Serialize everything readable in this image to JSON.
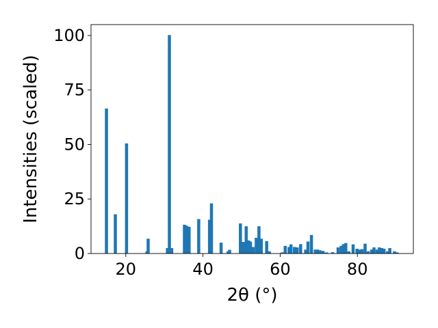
{
  "chart_data": {
    "type": "bar",
    "xlabel": "2θ (°)",
    "ylabel": "Intensities (scaled)",
    "xlim": [
      11,
      94.5
    ],
    "ylim": [
      0,
      105
    ],
    "x_ticks": [
      20,
      40,
      60,
      80
    ],
    "y_ticks": [
      0,
      25,
      50,
      75,
      100
    ],
    "grid": false,
    "bar_color": "#1f77b4",
    "bar_width": 0.8,
    "series": [
      {
        "x": [
          15.0,
          17.3,
          20.2,
          25.5,
          25.8,
          30.8,
          31.3,
          31.9,
          35.2,
          35.7,
          36.4,
          38.9,
          41.7,
          42.2,
          44.7,
          46.5,
          46.9,
          49.7,
          50.4,
          51.2,
          51.8,
          52.3,
          53.0,
          53.8,
          54.5,
          55.1,
          56.5,
          57.2,
          60.5,
          61.3,
          62.3,
          62.8,
          63.7,
          64.4,
          65.3,
          66.6,
          67.2,
          68.1,
          69.1,
          69.7,
          70.3,
          71.1,
          72.0,
          73.6,
          75.0,
          75.8,
          76.4,
          77.0,
          77.8,
          78.9,
          79.9,
          80.5,
          81.2,
          82.0,
          82.8,
          83.7,
          84.3,
          85.1,
          85.7,
          86.3,
          86.9,
          87.8,
          88.4,
          89.6,
          90.3
        ],
        "values": [
          66.5,
          18.0,
          50.5,
          1.0,
          6.8,
          2.5,
          100.2,
          2.5,
          13.2,
          12.8,
          12.3,
          15.8,
          15.5,
          23.0,
          5.0,
          1.0,
          1.7,
          13.8,
          5.3,
          12.5,
          6.0,
          5.5,
          3.0,
          7.2,
          12.5,
          6.8,
          5.7,
          1.0,
          0.5,
          3.5,
          3.0,
          4.2,
          3.0,
          2.8,
          4.3,
          1.8,
          5.5,
          8.5,
          1.8,
          1.8,
          1.5,
          1.2,
          0.5,
          0.6,
          2.8,
          3.5,
          4.3,
          4.8,
          1.0,
          4.2,
          2.2,
          1.8,
          2.0,
          4.5,
          1.0,
          1.8,
          2.8,
          1.8,
          2.8,
          2.5,
          2.2,
          1.0,
          2.5,
          1.0,
          0.5
        ]
      }
    ]
  }
}
